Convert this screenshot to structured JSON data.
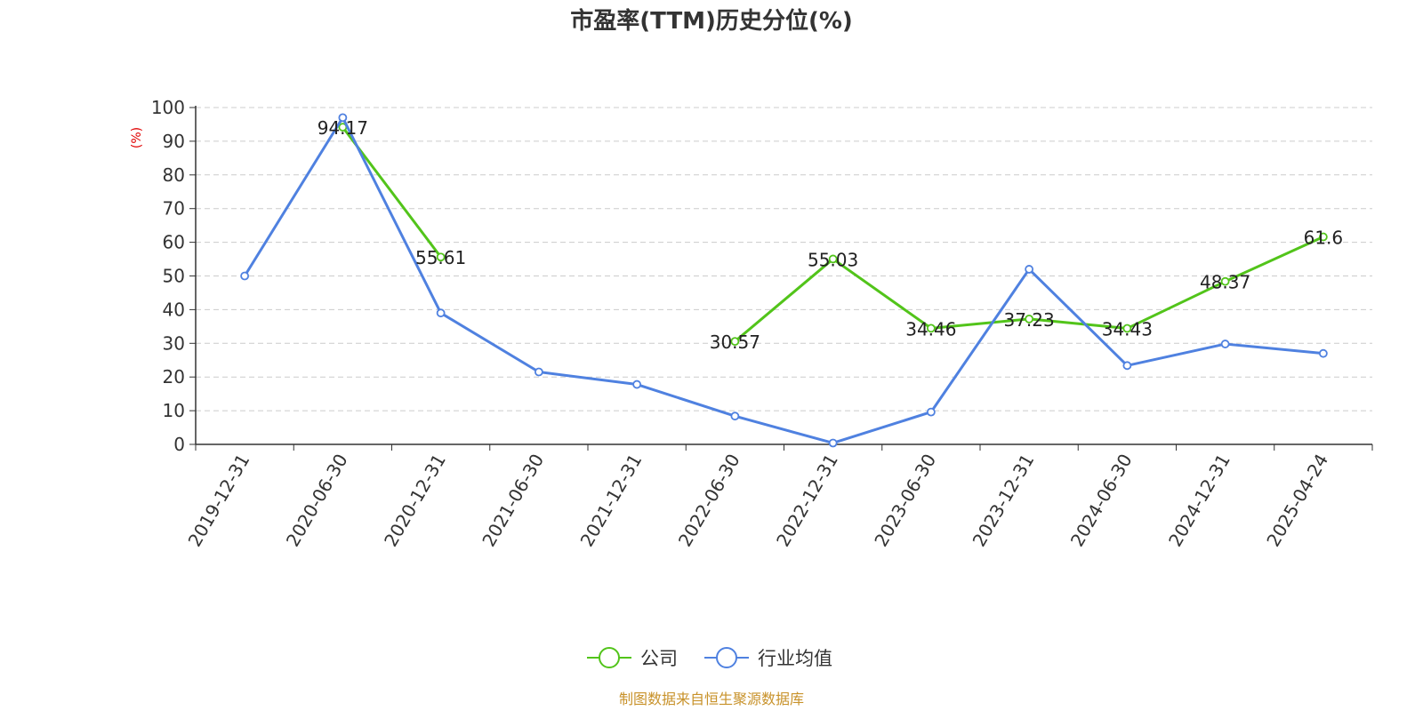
{
  "chart_data": {
    "type": "line",
    "title": "市盈率(TTM)历史分位(%)",
    "ylabel": "(%)",
    "xlabel": "",
    "ylim": [
      0,
      100
    ],
    "yticks": [
      "0",
      "10",
      "20",
      "30",
      "40",
      "50",
      "60",
      "70",
      "80",
      "90",
      "100"
    ],
    "categories": [
      "2019-12-31",
      "2020-06-30",
      "2020-12-31",
      "2021-06-30",
      "2021-12-31",
      "2022-06-30",
      "2022-12-31",
      "2023-06-30",
      "2023-12-31",
      "2024-06-30",
      "2024-12-31",
      "2025-04-24"
    ],
    "series": [
      {
        "name": "公司",
        "color": "#52c41a",
        "values": [
          null,
          94.17,
          55.61,
          null,
          null,
          30.57,
          55.03,
          34.46,
          37.23,
          34.43,
          48.37,
          61.6
        ],
        "labels": [
          "",
          "94.17",
          "55.61",
          "",
          "",
          "30.57",
          "55.03",
          "34.46",
          "37.23",
          "34.43",
          "48.37",
          "61.6"
        ]
      },
      {
        "name": "行业均值",
        "color": "#4f81e0",
        "values": [
          50,
          97,
          39,
          21.5,
          17.8,
          8.4,
          0.4,
          9.6,
          52,
          23.4,
          29.8,
          27
        ]
      }
    ],
    "grid": true,
    "legend_position": "bottom-center"
  },
  "source": "制图数据来自恒生聚源数据库",
  "colors": {
    "unit_label": "#e00000",
    "source_text": "#c8922a",
    "grid": "#cccccc",
    "axis": "#333333"
  }
}
